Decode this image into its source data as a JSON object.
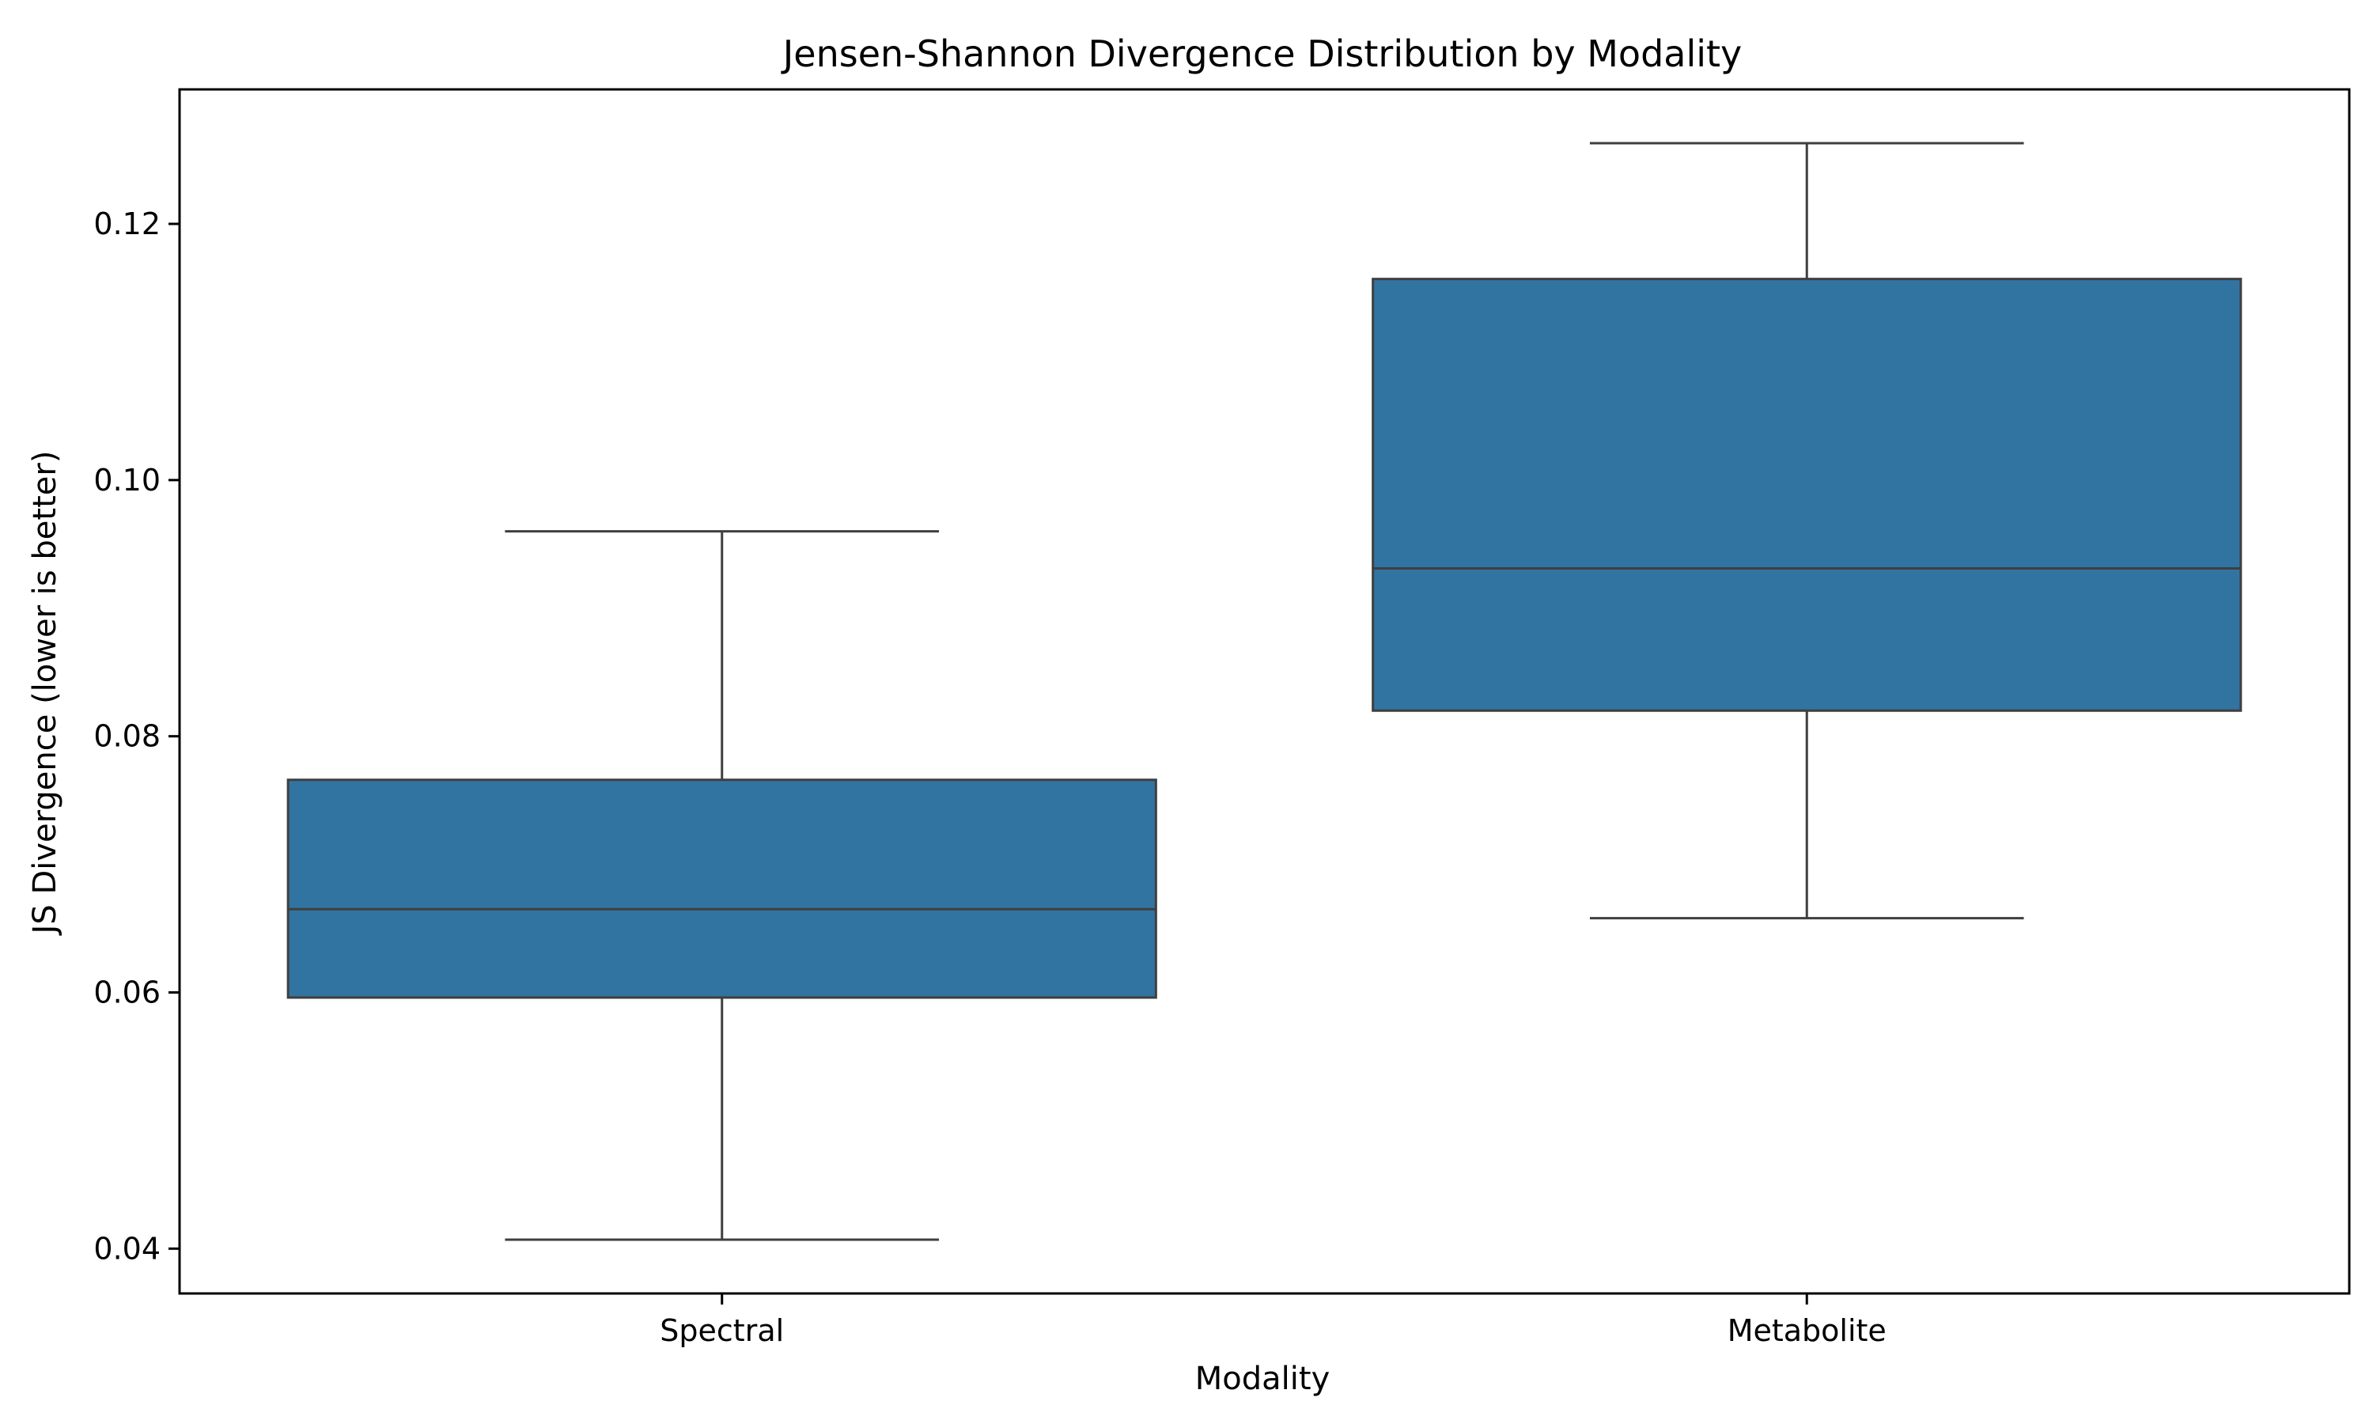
{
  "chart_data": {
    "type": "box",
    "title": "Jensen-Shannon Divergence Distribution by Modality",
    "xlabel": "Modality",
    "ylabel": "JS Divergence (lower is better)",
    "ylim": [
      0.0365,
      0.1305
    ],
    "yticks": [
      0.04,
      0.06,
      0.08,
      0.1,
      0.12
    ],
    "ytick_labels": [
      "0.04",
      "0.06",
      "0.08",
      "0.10",
      "0.12"
    ],
    "categories": [
      "Spectral",
      "Metabolite"
    ],
    "boxes": [
      {
        "category": "Spectral",
        "whisker_low": 0.0407,
        "q1": 0.0596,
        "median": 0.0665,
        "q3": 0.0766,
        "whisker_high": 0.096
      },
      {
        "category": "Metabolite",
        "whisker_low": 0.0658,
        "q1": 0.082,
        "median": 0.0931,
        "q3": 0.1157,
        "whisker_high": 0.1263
      }
    ],
    "grid": false,
    "colors": {
      "box_fill": "#3274a1",
      "line": "#3f3f3f",
      "axes": "#000000"
    }
  }
}
